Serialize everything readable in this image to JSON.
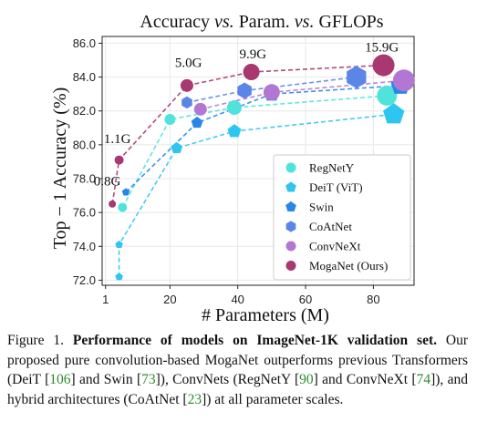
{
  "chart_data": {
    "type": "scatter",
    "title": "Accuracy vs. Param. vs. GFLOPs",
    "title_parts": [
      "Accuracy ",
      "vs.",
      " Param. ",
      "vs.",
      " GFLOPs"
    ],
    "xlabel": "# Parameters (M)",
    "ylabel": "Top − 1 Accuracy (%)",
    "xlim": [
      0,
      92
    ],
    "ylim": [
      71.7,
      86.4
    ],
    "xticks": [
      1,
      20,
      40,
      60,
      80
    ],
    "yticks": [
      "72.0",
      "74.0",
      "76.0",
      "78.0",
      "80.0",
      "82.0",
      "84.0",
      "86.0"
    ],
    "grid": true,
    "legend_position": "bottom-right",
    "annotations": [
      {
        "text": "0.8G",
        "x": -2.5,
        "y": 77.6
      },
      {
        "text": "1.1G",
        "x": 0.5,
        "y": 80.1
      },
      {
        "text": "5.0G",
        "x": 21.5,
        "y": 84.6
      },
      {
        "text": "9.9G",
        "x": 40.5,
        "y": 85.1
      },
      {
        "text": "15.9G",
        "x": 77.5,
        "y": 85.5
      }
    ],
    "series": [
      {
        "name": "RegNetY",
        "marker": "circle",
        "color": "#4fe3dc",
        "points": [
          {
            "x": 6,
            "y": 76.3
          },
          {
            "x": 20,
            "y": 81.5
          },
          {
            "x": 39,
            "y": 82.2
          },
          {
            "x": 84,
            "y": 82.9
          }
        ],
        "sizes": [
          5,
          6,
          8,
          11
        ]
      },
      {
        "name": "DeiT (ViT)",
        "marker": "pentagon",
        "color": "#2ec6f0",
        "points": [
          {
            "x": 5,
            "y": 72.2
          },
          {
            "x": 5,
            "y": 74.1
          },
          {
            "x": 22,
            "y": 79.8
          },
          {
            "x": 39,
            "y": 80.8
          },
          {
            "x": 86,
            "y": 81.8
          }
        ],
        "sizes": [
          4,
          4,
          6,
          7,
          11
        ]
      },
      {
        "name": "Swin",
        "marker": "pentagon",
        "color": "#2a86e6",
        "points": [
          {
            "x": 7,
            "y": 77.2
          },
          {
            "x": 28,
            "y": 81.3
          },
          {
            "x": 50,
            "y": 83.0
          },
          {
            "x": 88,
            "y": 83.5
          }
        ],
        "sizes": [
          4,
          6,
          8,
          10
        ]
      },
      {
        "name": "CoAtNet",
        "marker": "hexagon",
        "color": "#5c86e6",
        "points": [
          {
            "x": 25,
            "y": 82.5
          },
          {
            "x": 42,
            "y": 83.2
          },
          {
            "x": 75,
            "y": 84.0
          }
        ],
        "sizes": [
          6,
          8,
          11
        ]
      },
      {
        "name": "ConvNeXt",
        "marker": "circle",
        "color": "#b277d3",
        "points": [
          {
            "x": 29,
            "y": 82.1
          },
          {
            "x": 50,
            "y": 83.1
          },
          {
            "x": 89,
            "y": 83.8
          }
        ],
        "sizes": [
          7,
          9,
          12
        ]
      },
      {
        "name": "MogaNet (Ours)",
        "marker": "circle",
        "color": "#a8386f",
        "points": [
          {
            "x": 3,
            "y": 76.5
          },
          {
            "x": 5,
            "y": 79.1
          },
          {
            "x": 25,
            "y": 83.5
          },
          {
            "x": 44,
            "y": 84.3
          },
          {
            "x": 83,
            "y": 84.7
          }
        ],
        "sizes": [
          4,
          5,
          7,
          9,
          12
        ]
      }
    ]
  },
  "caption": {
    "label": "Figure 1.",
    "title": "Performance of models on ImageNet-1K validation set.",
    "body_1": "Our proposed pure convolution-based MogaNet outperforms previous Transformers (DeiT [",
    "cite_deit": "106",
    "body_2": "] and Swin [",
    "cite_swin": "73",
    "body_3": "]), ConvNets (RegNetY [",
    "cite_regnet": "90",
    "body_4": "] and ConvNeXt [",
    "cite_convnext": "74",
    "body_5": "]), and hybrid architectures (CoAtNet [",
    "cite_coatnet": "23",
    "body_6": "]) at all parameter scales."
  }
}
